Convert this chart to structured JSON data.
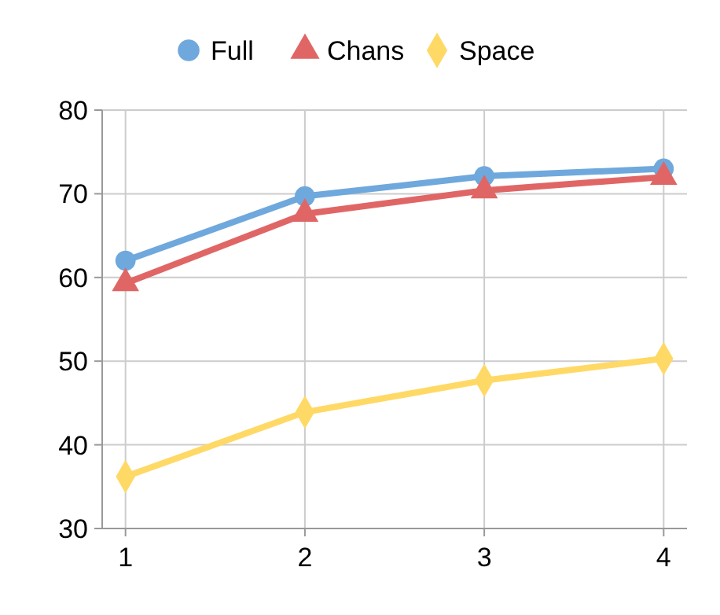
{
  "chart_data": {
    "type": "line",
    "categories": [
      "1",
      "2",
      "3",
      "4"
    ],
    "series": [
      {
        "name": "Full",
        "color": "#6fa8dc",
        "marker": "circle",
        "values": [
          62.0,
          69.7,
          72.1,
          73.0
        ]
      },
      {
        "name": "Chans",
        "color": "#e06666",
        "marker": "triangle",
        "values": [
          59.3,
          67.6,
          70.4,
          72.0
        ]
      },
      {
        "name": "Space",
        "color": "#ffd966",
        "marker": "diamond",
        "values": [
          36.2,
          43.9,
          47.7,
          50.3
        ]
      }
    ],
    "ylim": [
      30,
      80
    ],
    "yticks": [
      30,
      40,
      50,
      60,
      70,
      80
    ],
    "grid": true,
    "legend": "top"
  }
}
